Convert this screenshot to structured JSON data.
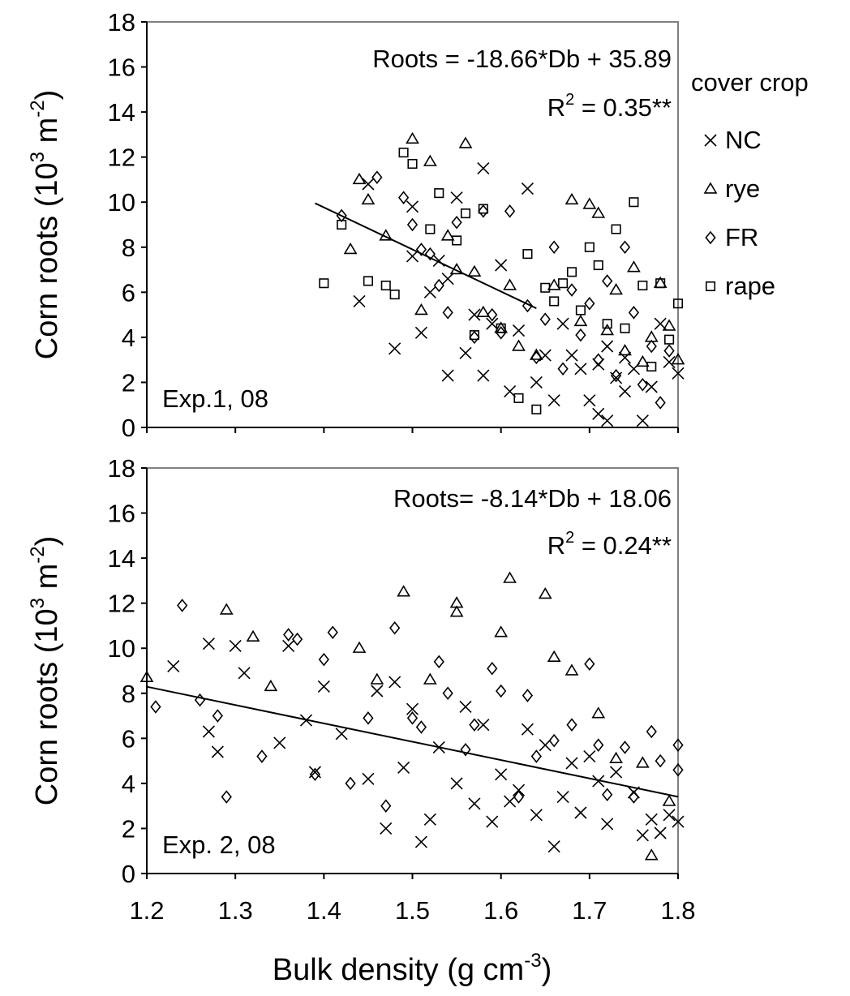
{
  "chart_data": [
    {
      "type": "scatter",
      "panel_label": "Exp.1, 08",
      "ylabel_main": "Corn roots (10",
      "ylabel_sup1": "3",
      "ylabel_unit": " m",
      "ylabel_sup2": "-2",
      "ylabel_close": ")",
      "ylim": [
        0,
        18
      ],
      "yticks": [
        "0",
        "2",
        "4",
        "6",
        "8",
        "10",
        "12",
        "14",
        "16",
        "18"
      ],
      "xlim": [
        1.2,
        1.8
      ],
      "equation": "Roots = -18.66*Db + 35.89",
      "r2_label": "R",
      "r2_sup": "2",
      "r2_value": " = 0.35**",
      "fit": {
        "slope": -18.66,
        "intercept": 35.89,
        "x_range": [
          1.39,
          1.64
        ]
      },
      "series": [
        {
          "name": "NC",
          "marker": "x",
          "points": [
            [
              1.44,
              5.6
            ],
            [
              1.45,
              10.8
            ],
            [
              1.48,
              3.5
            ],
            [
              1.5,
              7.6
            ],
            [
              1.5,
              9.8
            ],
            [
              1.51,
              4.2
            ],
            [
              1.52,
              6.0
            ],
            [
              1.53,
              7.4
            ],
            [
              1.54,
              6.6
            ],
            [
              1.54,
              2.3
            ],
            [
              1.55,
              10.2
            ],
            [
              1.56,
              3.3
            ],
            [
              1.57,
              5.0
            ],
            [
              1.58,
              11.5
            ],
            [
              1.58,
              2.3
            ],
            [
              1.59,
              4.6
            ],
            [
              1.6,
              7.2
            ],
            [
              1.61,
              1.6
            ],
            [
              1.62,
              4.3
            ],
            [
              1.63,
              10.6
            ],
            [
              1.64,
              2.0
            ],
            [
              1.65,
              3.2
            ],
            [
              1.66,
              1.2
            ],
            [
              1.67,
              4.6
            ],
            [
              1.68,
              3.2
            ],
            [
              1.69,
              2.6
            ],
            [
              1.7,
              1.2
            ],
            [
              1.71,
              0.6
            ],
            [
              1.71,
              2.8
            ],
            [
              1.72,
              0.3
            ],
            [
              1.72,
              3.6
            ],
            [
              1.73,
              2.2
            ],
            [
              1.74,
              1.6
            ],
            [
              1.74,
              3.1
            ],
            [
              1.75,
              2.6
            ],
            [
              1.76,
              0.3
            ],
            [
              1.77,
              1.8
            ],
            [
              1.78,
              4.6
            ],
            [
              1.79,
              2.9
            ],
            [
              1.8,
              2.4
            ]
          ]
        },
        {
          "name": "rye",
          "marker": "triangle",
          "points": [
            [
              1.43,
              7.9
            ],
            [
              1.44,
              11.0
            ],
            [
              1.45,
              10.1
            ],
            [
              1.47,
              8.5
            ],
            [
              1.5,
              12.8
            ],
            [
              1.51,
              5.2
            ],
            [
              1.52,
              11.8
            ],
            [
              1.54,
              8.5
            ],
            [
              1.55,
              7.0
            ],
            [
              1.56,
              12.6
            ],
            [
              1.57,
              6.9
            ],
            [
              1.58,
              5.1
            ],
            [
              1.6,
              4.4
            ],
            [
              1.61,
              6.3
            ],
            [
              1.62,
              3.6
            ],
            [
              1.64,
              3.2
            ],
            [
              1.66,
              6.3
            ],
            [
              1.68,
              10.1
            ],
            [
              1.69,
              4.7
            ],
            [
              1.7,
              9.9
            ],
            [
              1.71,
              9.5
            ],
            [
              1.72,
              4.3
            ],
            [
              1.73,
              6.1
            ],
            [
              1.74,
              3.4
            ],
            [
              1.75,
              7.1
            ],
            [
              1.76,
              2.9
            ],
            [
              1.77,
              4.0
            ],
            [
              1.78,
              6.4
            ],
            [
              1.79,
              4.5
            ],
            [
              1.8,
              3.0
            ]
          ]
        },
        {
          "name": "FR",
          "marker": "diamond",
          "points": [
            [
              1.42,
              9.4
            ],
            [
              1.46,
              11.1
            ],
            [
              1.49,
              10.2
            ],
            [
              1.5,
              9.0
            ],
            [
              1.51,
              7.9
            ],
            [
              1.52,
              7.7
            ],
            [
              1.53,
              6.3
            ],
            [
              1.54,
              5.1
            ],
            [
              1.55,
              9.1
            ],
            [
              1.57,
              4.0
            ],
            [
              1.58,
              9.6
            ],
            [
              1.59,
              5.0
            ],
            [
              1.6,
              4.2
            ],
            [
              1.61,
              9.6
            ],
            [
              1.63,
              5.4
            ],
            [
              1.64,
              3.1
            ],
            [
              1.65,
              4.8
            ],
            [
              1.66,
              8.0
            ],
            [
              1.67,
              2.6
            ],
            [
              1.68,
              6.1
            ],
            [
              1.69,
              4.1
            ],
            [
              1.7,
              5.5
            ],
            [
              1.71,
              3.0
            ],
            [
              1.72,
              6.5
            ],
            [
              1.73,
              2.3
            ],
            [
              1.74,
              8.0
            ],
            [
              1.75,
              5.1
            ],
            [
              1.76,
              1.9
            ],
            [
              1.77,
              3.6
            ],
            [
              1.78,
              1.1
            ],
            [
              1.79,
              3.4
            ]
          ]
        },
        {
          "name": "rape",
          "marker": "square",
          "points": [
            [
              1.4,
              6.4
            ],
            [
              1.42,
              9.0
            ],
            [
              1.45,
              6.5
            ],
            [
              1.47,
              6.3
            ],
            [
              1.48,
              5.9
            ],
            [
              1.49,
              12.2
            ],
            [
              1.5,
              11.7
            ],
            [
              1.52,
              8.8
            ],
            [
              1.53,
              10.4
            ],
            [
              1.55,
              8.3
            ],
            [
              1.56,
              9.5
            ],
            [
              1.57,
              4.1
            ],
            [
              1.58,
              9.7
            ],
            [
              1.6,
              4.4
            ],
            [
              1.62,
              1.3
            ],
            [
              1.63,
              7.7
            ],
            [
              1.64,
              0.8
            ],
            [
              1.65,
              6.2
            ],
            [
              1.66,
              5.6
            ],
            [
              1.67,
              6.4
            ],
            [
              1.68,
              6.9
            ],
            [
              1.69,
              5.2
            ],
            [
              1.7,
              8.0
            ],
            [
              1.71,
              7.2
            ],
            [
              1.72,
              4.6
            ],
            [
              1.73,
              8.8
            ],
            [
              1.74,
              4.4
            ],
            [
              1.75,
              10.0
            ],
            [
              1.76,
              6.3
            ],
            [
              1.77,
              2.7
            ],
            [
              1.78,
              6.4
            ],
            [
              1.79,
              3.9
            ],
            [
              1.8,
              5.5
            ]
          ]
        }
      ]
    },
    {
      "type": "scatter",
      "panel_label": "Exp. 2, 08",
      "ylabel_main": "Corn roots (10",
      "ylabel_sup1": "3",
      "ylabel_unit": " m",
      "ylabel_sup2": "-2",
      "ylabel_close": ")",
      "ylim": [
        0,
        18
      ],
      "yticks": [
        "0",
        "2",
        "4",
        "6",
        "8",
        "10",
        "12",
        "14",
        "16",
        "18"
      ],
      "xlim": [
        1.2,
        1.8
      ],
      "xticks": [
        "1.2",
        "1.3",
        "1.4",
        "1.5",
        "1.6",
        "1.7",
        "1.8"
      ],
      "xlabel_main": "Bulk density (g cm",
      "xlabel_sup": "-3",
      "xlabel_close": ")",
      "equation": "Roots= -8.14*Db + 18.06",
      "r2_label": "R",
      "r2_sup": "2",
      "r2_value": " = 0.24**",
      "fit": {
        "slope": -8.14,
        "intercept": 18.06,
        "x_range": [
          1.2,
          1.8
        ]
      },
      "series": [
        {
          "name": "NC",
          "marker": "x",
          "points": [
            [
              1.23,
              9.2
            ],
            [
              1.27,
              6.3
            ],
            [
              1.27,
              10.2
            ],
            [
              1.28,
              5.4
            ],
            [
              1.3,
              10.1
            ],
            [
              1.31,
              8.9
            ],
            [
              1.35,
              5.8
            ],
            [
              1.36,
              10.1
            ],
            [
              1.38,
              6.8
            ],
            [
              1.39,
              4.5
            ],
            [
              1.4,
              8.3
            ],
            [
              1.42,
              6.2
            ],
            [
              1.45,
              4.2
            ],
            [
              1.46,
              8.1
            ],
            [
              1.47,
              2.0
            ],
            [
              1.48,
              8.5
            ],
            [
              1.49,
              4.7
            ],
            [
              1.5,
              7.3
            ],
            [
              1.51,
              1.4
            ],
            [
              1.52,
              2.4
            ],
            [
              1.53,
              5.6
            ],
            [
              1.55,
              4.0
            ],
            [
              1.56,
              7.4
            ],
            [
              1.57,
              3.1
            ],
            [
              1.58,
              6.6
            ],
            [
              1.59,
              2.3
            ],
            [
              1.6,
              4.4
            ],
            [
              1.61,
              3.2
            ],
            [
              1.62,
              3.7
            ],
            [
              1.63,
              6.4
            ],
            [
              1.64,
              2.6
            ],
            [
              1.65,
              5.7
            ],
            [
              1.66,
              1.2
            ],
            [
              1.67,
              3.4
            ],
            [
              1.68,
              4.9
            ],
            [
              1.69,
              2.7
            ],
            [
              1.7,
              5.2
            ],
            [
              1.71,
              4.1
            ],
            [
              1.72,
              2.2
            ],
            [
              1.73,
              4.5
            ],
            [
              1.75,
              3.6
            ],
            [
              1.76,
              1.7
            ],
            [
              1.77,
              2.4
            ],
            [
              1.78,
              1.8
            ],
            [
              1.79,
              2.6
            ],
            [
              1.8,
              2.3
            ]
          ]
        },
        {
          "name": "rye",
          "marker": "triangle",
          "points": [
            [
              1.2,
              8.7
            ],
            [
              1.29,
              11.7
            ],
            [
              1.32,
              10.5
            ],
            [
              1.34,
              8.3
            ],
            [
              1.44,
              10.0
            ],
            [
              1.46,
              8.6
            ],
            [
              1.49,
              12.5
            ],
            [
              1.52,
              8.6
            ],
            [
              1.55,
              12.0
            ],
            [
              1.55,
              11.6
            ],
            [
              1.6,
              10.7
            ],
            [
              1.61,
              13.1
            ],
            [
              1.65,
              12.4
            ],
            [
              1.66,
              9.6
            ],
            [
              1.68,
              9.0
            ],
            [
              1.71,
              7.1
            ],
            [
              1.73,
              5.1
            ],
            [
              1.76,
              4.9
            ],
            [
              1.77,
              0.8
            ],
            [
              1.79,
              3.2
            ]
          ]
        },
        {
          "name": "FR",
          "marker": "diamond",
          "points": [
            [
              1.21,
              7.4
            ],
            [
              1.24,
              11.9
            ],
            [
              1.26,
              7.7
            ],
            [
              1.28,
              7.0
            ],
            [
              1.29,
              3.4
            ],
            [
              1.33,
              5.2
            ],
            [
              1.36,
              10.6
            ],
            [
              1.37,
              10.4
            ],
            [
              1.39,
              4.4
            ],
            [
              1.4,
              9.5
            ],
            [
              1.41,
              10.7
            ],
            [
              1.43,
              4.0
            ],
            [
              1.45,
              6.9
            ],
            [
              1.47,
              3.0
            ],
            [
              1.48,
              10.9
            ],
            [
              1.5,
              6.9
            ],
            [
              1.51,
              6.5
            ],
            [
              1.53,
              9.4
            ],
            [
              1.54,
              8.0
            ],
            [
              1.56,
              5.5
            ],
            [
              1.57,
              6.6
            ],
            [
              1.59,
              9.1
            ],
            [
              1.6,
              8.1
            ],
            [
              1.62,
              3.4
            ],
            [
              1.63,
              7.9
            ],
            [
              1.64,
              5.2
            ],
            [
              1.66,
              5.9
            ],
            [
              1.68,
              6.6
            ],
            [
              1.7,
              9.3
            ],
            [
              1.71,
              5.7
            ],
            [
              1.72,
              3.5
            ],
            [
              1.74,
              5.6
            ],
            [
              1.75,
              3.4
            ],
            [
              1.77,
              6.3
            ],
            [
              1.78,
              5.0
            ],
            [
              1.8,
              5.7
            ],
            [
              1.8,
              4.6
            ]
          ]
        },
        {
          "name": "rape",
          "marker": "square",
          "points": []
        }
      ]
    }
  ],
  "legend": {
    "title": "cover crop",
    "items": [
      "NC",
      "rye",
      "FR",
      "rape"
    ]
  }
}
